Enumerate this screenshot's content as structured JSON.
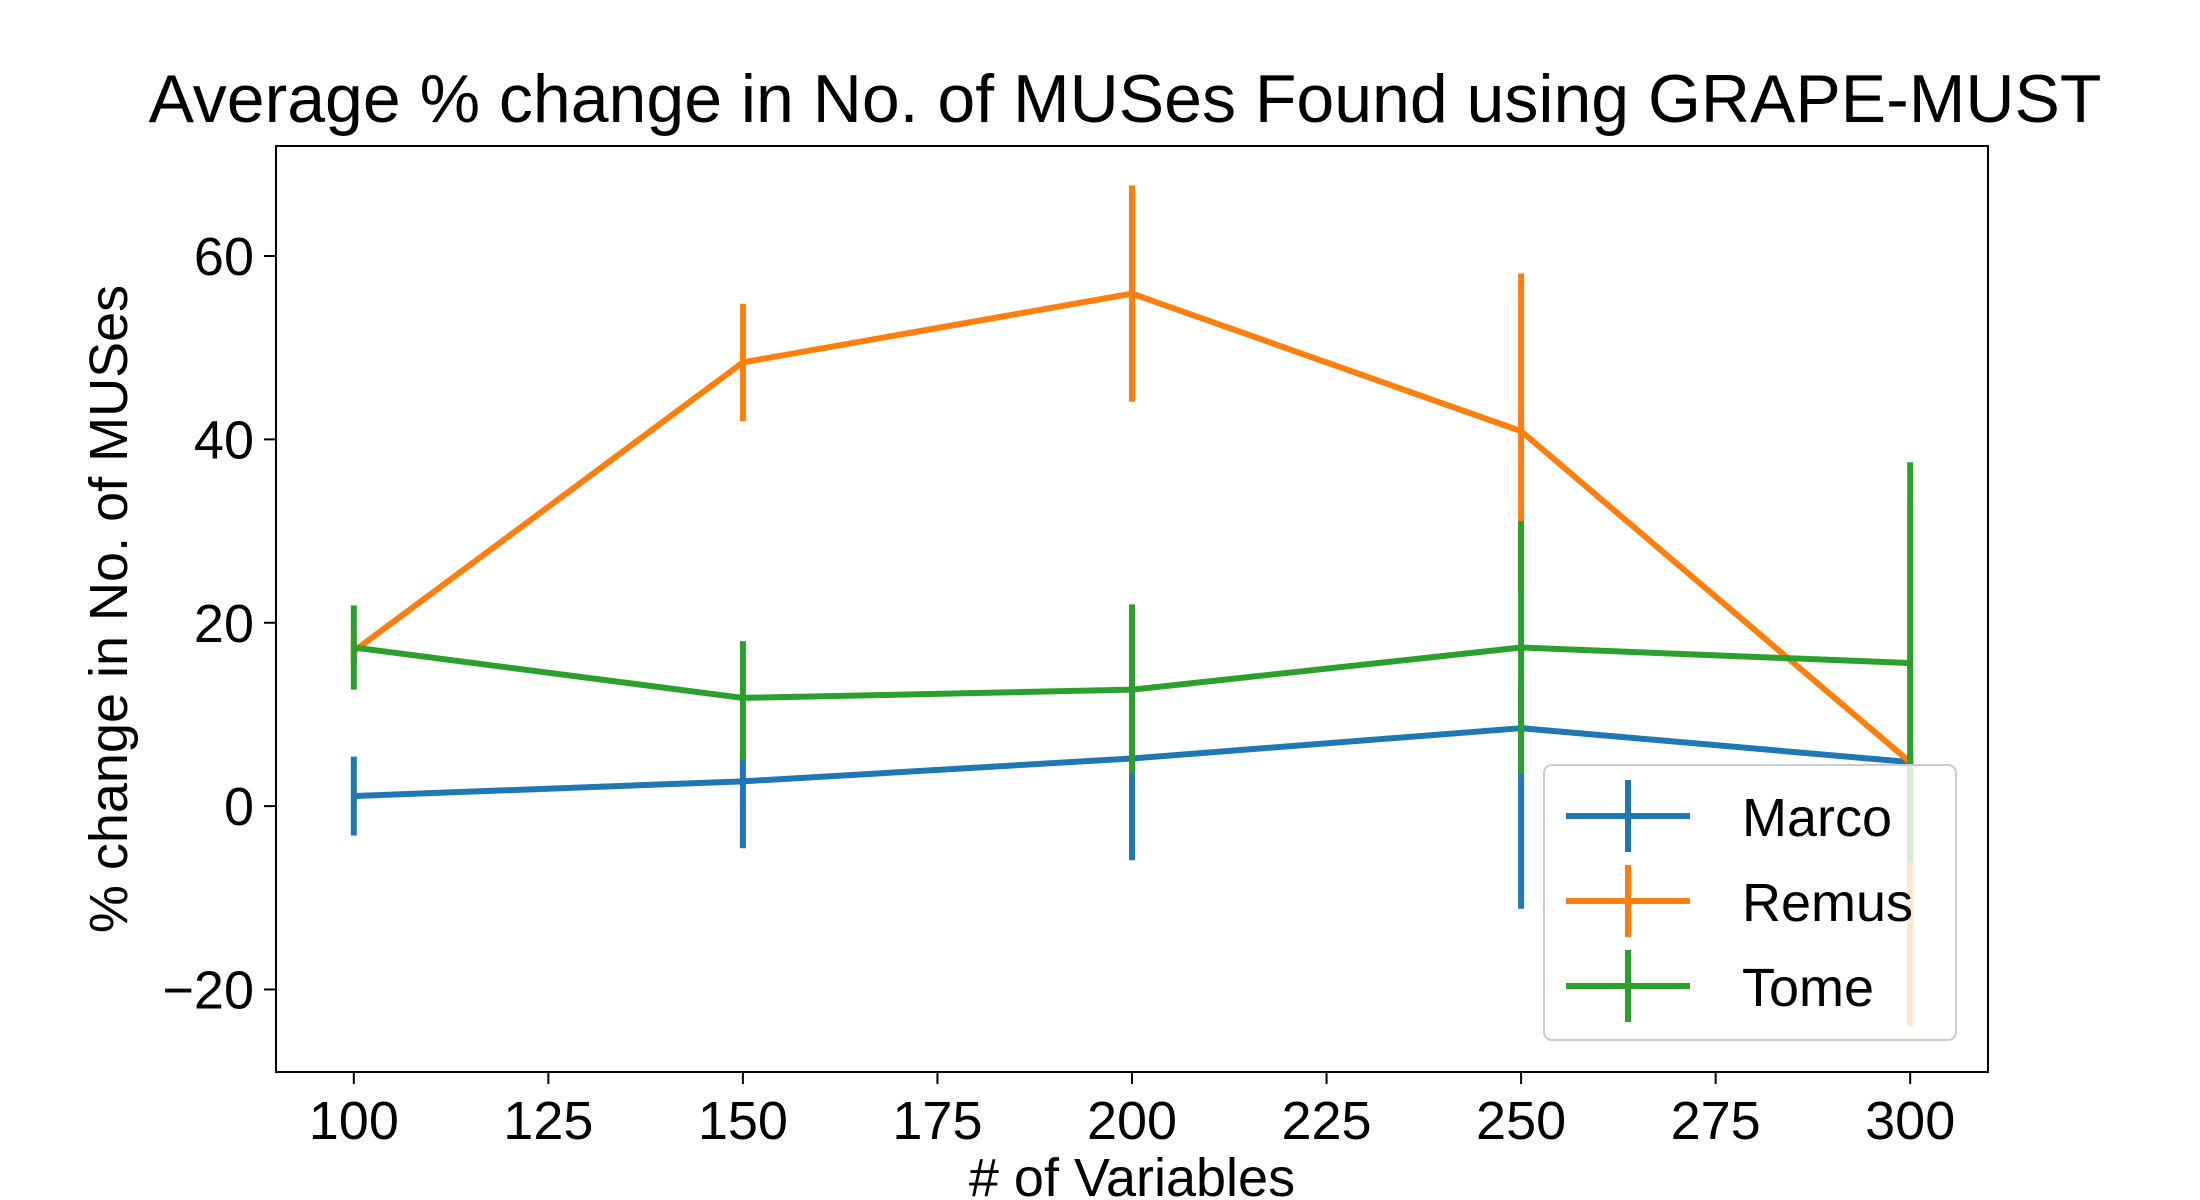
{
  "chart_data": {
    "type": "line",
    "title": "Average % change in No. of MUSes Found using GRAPE-MUST",
    "xlabel": "# of Variables",
    "ylabel": "% change in No. of MUSes",
    "xlim": [
      90,
      310
    ],
    "ylim": [
      -29,
      72
    ],
    "x_ticks": [
      100,
      125,
      150,
      175,
      200,
      225,
      250,
      275,
      300
    ],
    "y_ticks": [
      -20,
      0,
      20,
      40,
      60
    ],
    "grid": false,
    "legend_position": "bottom-right",
    "x": [
      100,
      150,
      200,
      250,
      300
    ],
    "series": [
      {
        "name": "Marco",
        "color": "#1f77b4",
        "values": [
          1.1,
          2.7,
          5.2,
          8.5,
          4.8
        ],
        "err_low": [
          -3.2,
          -4.6,
          -5.9,
          -11.2,
          4.0
        ],
        "err_high": [
          5.4,
          5.8,
          11.0,
          13.5,
          5.6
        ]
      },
      {
        "name": "Remus",
        "color": "#ff7f0e",
        "values": [
          16.9,
          48.4,
          55.9,
          40.9,
          4.8
        ],
        "err_low": [
          15.5,
          42.0,
          44.1,
          23.5,
          -24.0
        ],
        "err_high": [
          18.3,
          54.8,
          67.7,
          58.1,
          33.0
        ]
      },
      {
        "name": "Tome",
        "color": "#2ca02c",
        "values": [
          17.3,
          11.8,
          12.7,
          17.3,
          15.6
        ],
        "err_low": [
          12.7,
          5.0,
          3.5,
          3.5,
          -6.0
        ],
        "err_high": [
          21.9,
          18.0,
          22.0,
          31.1,
          37.5
        ]
      }
    ]
  }
}
